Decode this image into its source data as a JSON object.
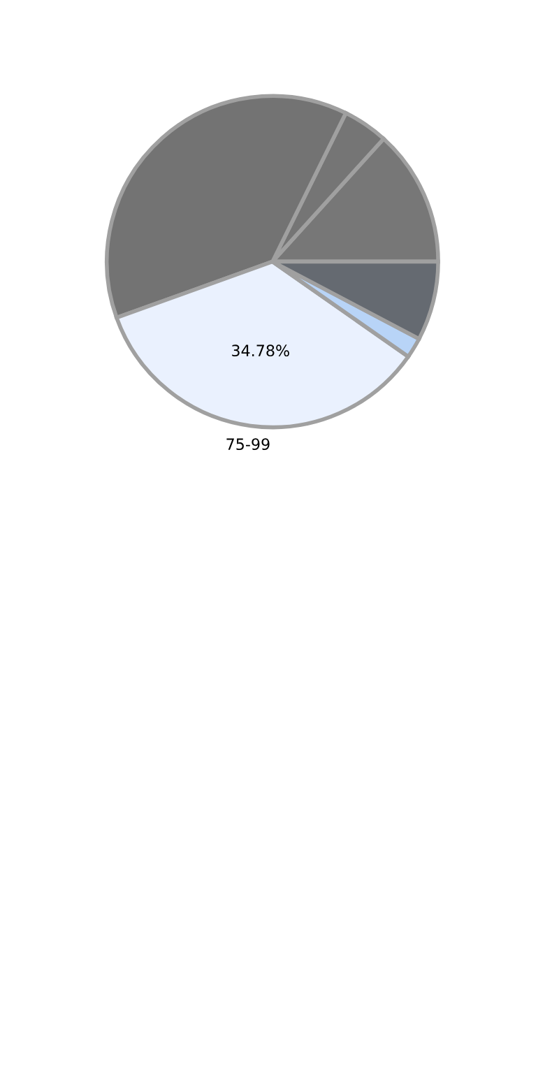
{
  "chart_data": {
    "type": "pie",
    "categories": [
      null,
      null,
      null,
      "75-99",
      null,
      null
    ],
    "values": [
      13.3,
      4.4,
      37.8,
      34.78,
      2.0,
      7.72
    ],
    "colors": [
      "#777777",
      "#757575",
      "#737373",
      "#eaf1fe",
      "#b8d4f7",
      "#656a71"
    ],
    "value_labels": [
      null,
      null,
      null,
      "34.78%",
      null,
      null
    ]
  }
}
